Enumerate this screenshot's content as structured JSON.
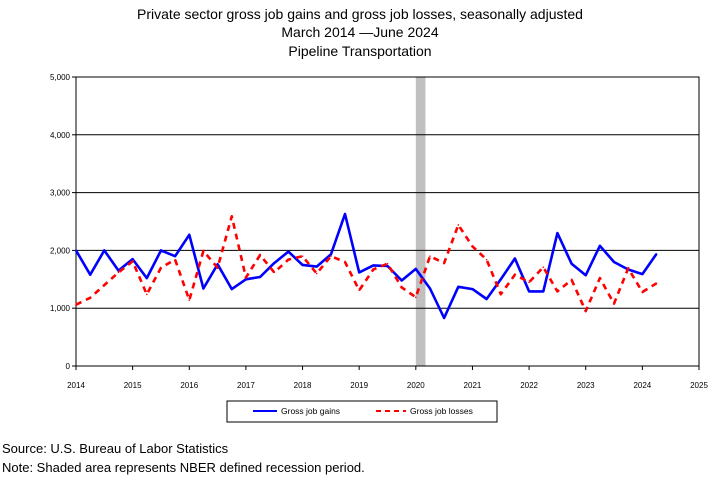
{
  "titles": [
    "Private sector gross job gains and gross job losses, seasonally adjusted",
    "March 2014  —June 2024",
    "Pipeline Transportation"
  ],
  "footnotes": {
    "source": "Source: U.S. Bureau of Labor Statistics",
    "note": "Note: Shaded area represents NBER defined recession period."
  },
  "chart_data": {
    "type": "line",
    "x_axis": {
      "min": 2014,
      "max": 2025,
      "ticks": [
        2014,
        2015,
        2016,
        2017,
        2018,
        2019,
        2020,
        2021,
        2022,
        2023,
        2024,
        2025
      ],
      "tick_labels": [
        "2014",
        "2015",
        "2016",
        "2017",
        "2018",
        "2019",
        "2020",
        "2021",
        "2022",
        "2023",
        "2024",
        "2025"
      ]
    },
    "y_axis": {
      "min": 0,
      "max": 5000,
      "ticks": [
        0,
        1000,
        2000,
        3000,
        4000,
        5000
      ],
      "tick_labels": [
        "0",
        "1,000",
        "2,000",
        "3,000",
        "4,000",
        "5,000"
      ]
    },
    "grid": "horizontal",
    "legend_position": "bottom",
    "recession_shading": {
      "start": 2020.0,
      "end": 2020.17,
      "color": "#c0c0c0"
    },
    "x": [
      2014.0,
      2014.25,
      2014.5,
      2014.75,
      2015.0,
      2015.25,
      2015.5,
      2015.75,
      2016.0,
      2016.25,
      2016.5,
      2016.75,
      2017.0,
      2017.25,
      2017.5,
      2017.75,
      2018.0,
      2018.25,
      2018.5,
      2018.75,
      2019.0,
      2019.25,
      2019.5,
      2019.75,
      2020.0,
      2020.25,
      2020.5,
      2020.75,
      2021.0,
      2021.25,
      2021.5,
      2021.75,
      2022.0,
      2022.25,
      2022.5,
      2022.75,
      2023.0,
      2023.25,
      2023.5,
      2023.75,
      2024.0,
      2024.25
    ],
    "series": [
      {
        "name": "Gross job gains",
        "color": "#0000ff",
        "style": "solid",
        "values": [
          2000,
          1580,
          2000,
          1650,
          1850,
          1520,
          2000,
          1900,
          2270,
          1340,
          1760,
          1330,
          1500,
          1540,
          1780,
          1980,
          1750,
          1720,
          1930,
          2630,
          1620,
          1740,
          1730,
          1480,
          1680,
          1340,
          830,
          1370,
          1330,
          1160,
          1500,
          1860,
          1290,
          1290,
          2300,
          1770,
          1570,
          2080,
          1800,
          1670,
          1590,
          1940
        ]
      },
      {
        "name": "Gross job losses",
        "color": "#ff0000",
        "style": "dashed",
        "values": [
          1060,
          1180,
          1400,
          1620,
          1810,
          1240,
          1700,
          1840,
          1140,
          1990,
          1700,
          2590,
          1530,
          1920,
          1620,
          1840,
          1900,
          1600,
          1900,
          1800,
          1310,
          1670,
          1770,
          1360,
          1190,
          1900,
          1780,
          2440,
          2070,
          1840,
          1240,
          1580,
          1450,
          1710,
          1290,
          1490,
          950,
          1520,
          1080,
          1690,
          1280,
          1430
        ]
      }
    ]
  }
}
